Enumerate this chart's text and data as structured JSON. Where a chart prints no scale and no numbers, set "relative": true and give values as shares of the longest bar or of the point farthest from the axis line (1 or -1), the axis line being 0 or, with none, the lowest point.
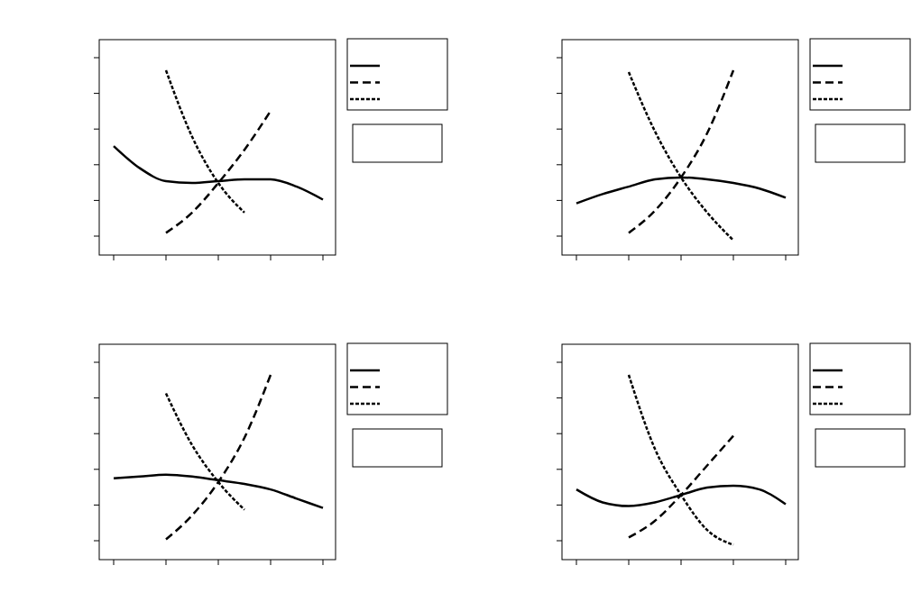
{
  "chart_data": [
    {
      "type": "line",
      "relative": true,
      "grid": false,
      "categories": [
        null,
        null,
        null,
        null,
        null,
        null,
        null,
        null,
        null
      ],
      "series": [
        {
          "color": "#000000",
          "line_style": "solid",
          "values": [
            0.59,
            0.47,
            0.4,
            0.39,
            0.4,
            0.41,
            0.41,
            0.37,
            0.3
          ]
        },
        {
          "color": "#000000",
          "line_style": "dashed",
          "values": [
            null,
            null,
            0.12,
            0.23,
            0.39,
            0.57,
            0.78,
            null,
            null
          ]
        },
        {
          "color": "#000000",
          "line_style": "dotted",
          "values": [
            null,
            null,
            1,
            0.64,
            0.39,
            0.23,
            null,
            null,
            null
          ]
        }
      ]
    },
    {
      "type": "line",
      "relative": true,
      "grid": false,
      "categories": [
        null,
        null,
        null,
        null,
        null,
        null,
        null,
        null,
        null
      ],
      "series": [
        {
          "color": "#000000",
          "line_style": "solid",
          "values": [
            0.28,
            0.33,
            0.37,
            0.41,
            0.42,
            0.41,
            0.39,
            0.36,
            0.31
          ]
        },
        {
          "color": "#000000",
          "line_style": "dashed",
          "values": [
            null,
            null,
            0.12,
            0.24,
            0.42,
            0.66,
            1,
            null,
            null
          ]
        },
        {
          "color": "#000000",
          "line_style": "dotted",
          "values": [
            null,
            null,
            0.99,
            0.67,
            0.42,
            0.23,
            0.08,
            null,
            null
          ]
        }
      ]
    },
    {
      "type": "line",
      "relative": true,
      "grid": false,
      "categories": [
        null,
        null,
        null,
        null,
        null,
        null,
        null,
        null,
        null
      ],
      "series": [
        {
          "color": "#000000",
          "line_style": "solid",
          "values": [
            0.44,
            0.45,
            0.46,
            0.45,
            0.43,
            0.41,
            0.38,
            0.33,
            0.28
          ]
        },
        {
          "color": "#000000",
          "line_style": "dashed",
          "values": [
            null,
            null,
            0.11,
            0.24,
            0.42,
            0.66,
            1,
            null,
            null
          ]
        },
        {
          "color": "#000000",
          "line_style": "dotted",
          "values": [
            null,
            null,
            0.9,
            0.62,
            0.42,
            0.27,
            null,
            null,
            null
          ]
        }
      ]
    },
    {
      "type": "line",
      "relative": true,
      "grid": false,
      "categories": [
        null,
        null,
        null,
        null,
        null,
        null,
        null,
        null,
        null
      ],
      "series": [
        {
          "color": "#000000",
          "line_style": "solid",
          "values": [
            0.38,
            0.31,
            0.29,
            0.31,
            0.35,
            0.39,
            0.4,
            0.38,
            0.3
          ]
        },
        {
          "color": "#000000",
          "line_style": "dashed",
          "values": [
            null,
            null,
            0.12,
            0.21,
            0.35,
            0.51,
            0.67,
            null,
            null
          ]
        },
        {
          "color": "#000000",
          "line_style": "dotted",
          "values": [
            null,
            null,
            1,
            0.6,
            0.35,
            0.16,
            0.08,
            null,
            null
          ]
        }
      ]
    }
  ]
}
